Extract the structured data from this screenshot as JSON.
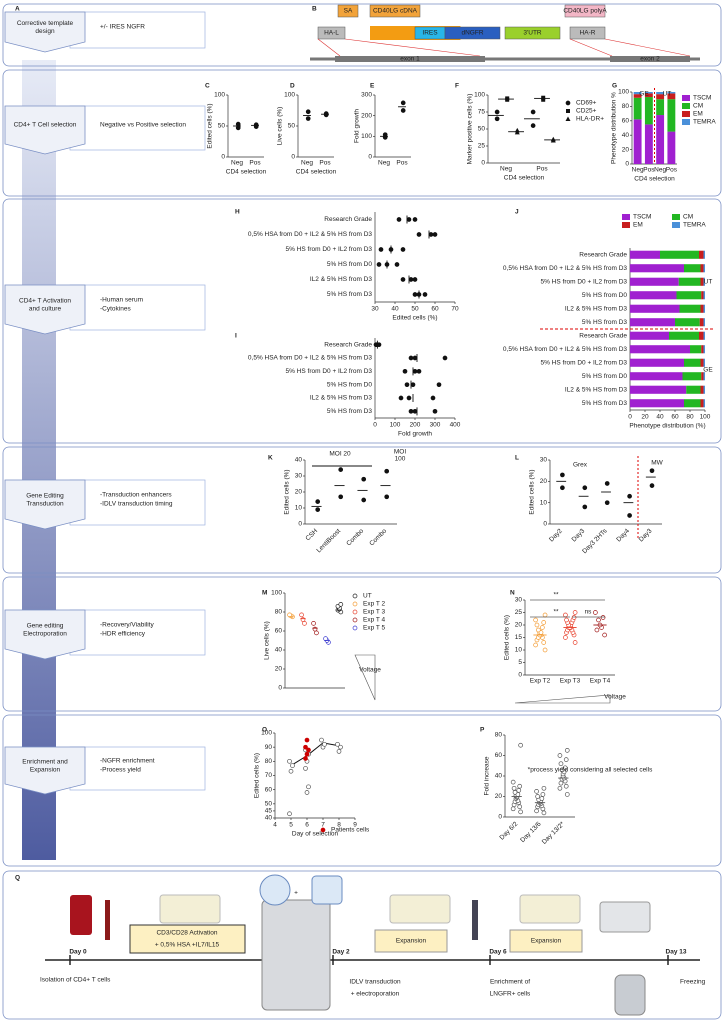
{
  "rows": [
    {
      "letter": "A",
      "title": "Corrective template design",
      "notes": [
        "+/- IRES NGFR"
      ]
    },
    {
      "title": "CD4+ T Cell selection",
      "notes": [
        "Negative vs Positive selection"
      ]
    },
    {
      "title": "CD4+ T Activation and culture",
      "notes": [
        "-Human serum",
        "-Cytokines"
      ]
    },
    {
      "title": "Gene Editing Transduction",
      "notes": [
        "-Transduction enhancers",
        "-IDLV transduction timing"
      ]
    },
    {
      "title": "Gene editing Electroporation",
      "notes": [
        "-Recovery/Viability",
        "-HDR efficiency"
      ]
    },
    {
      "title": "Enrichment and Expansion",
      "notes": [
        "-NGFR enrichment",
        "-Process yield"
      ]
    }
  ],
  "construct": {
    "letter": "B",
    "boxes": [
      "HA-L",
      "SA",
      "CD40LG cDNA",
      "IRES",
      "dNGFR",
      "3'UTR",
      "CD40LG polyA",
      "HA-R"
    ],
    "exons": [
      "exon 1",
      "exon 2"
    ]
  },
  "chart_data": [
    {
      "letter": "C",
      "type": "dot",
      "ylabel": "Edited cells (%)",
      "xlabel": "CD4 selection",
      "categories": [
        "Neg",
        "Pos"
      ],
      "ylim": [
        0,
        100
      ],
      "yticks": [
        0,
        50,
        100
      ],
      "series": [
        {
          "color": "#111",
          "marker": "circle",
          "points": [
            [
              47,
              53
            ],
            [
              49,
              52
            ]
          ],
          "means": [
            50,
            51
          ]
        }
      ]
    },
    {
      "letter": "D",
      "type": "dot",
      "ylabel": "Live cells (%)",
      "xlabel": "CD4 selection",
      "categories": [
        "Neg",
        "Pos"
      ],
      "ylim": [
        0,
        100
      ],
      "yticks": [
        0,
        50,
        100
      ],
      "series": [
        {
          "color": "#111",
          "marker": "circle",
          "points": [
            [
              62,
              73
            ],
            [
              68,
              70
            ]
          ],
          "means": [
            67,
            69
          ]
        }
      ]
    },
    {
      "letter": "E",
      "type": "dot",
      "ylabel": "Fold growth",
      "categories": [
        "Neg",
        "Pos"
      ],
      "ylim": [
        0,
        300
      ],
      "yticks": [
        0,
        100,
        200,
        300
      ],
      "series": [
        {
          "color": "#111",
          "marker": "circle",
          "points": [
            [
              95,
              108
            ],
            [
              225,
              262
            ]
          ],
          "means": [
            100,
            243
          ]
        }
      ]
    },
    {
      "letter": "F",
      "type": "dot",
      "ylabel": "Marker positive cells (%)",
      "xlabel": "CD4 selection",
      "categories": [
        "Neg",
        "Pos"
      ],
      "ylim": [
        0,
        100
      ],
      "yticks": [
        0,
        25,
        50,
        75,
        100
      ],
      "series": [
        {
          "name": "CD69+",
          "color": "#111",
          "marker": "circle",
          "points": [
            [
              65,
              75
            ],
            [
              55,
              75
            ]
          ],
          "means": [
            70,
            65
          ]
        },
        {
          "name": "CD25+",
          "color": "#111",
          "marker": "square",
          "points": [
            [
              93,
              95
            ],
            [
              93,
              96
            ]
          ],
          "means": [
            94,
            95
          ]
        },
        {
          "name": "HLA-DR+",
          "color": "#111",
          "marker": "triangle",
          "points": [
            [
              45,
              48
            ],
            [
              33,
              35
            ]
          ],
          "means": [
            46,
            34
          ]
        }
      ]
    },
    {
      "letter": "G",
      "type": "stacked",
      "ylabel": "Phenotype distribution %",
      "xlabel": "CD4 selection",
      "categories": [
        "Neg",
        "Pos",
        "Neg",
        "Pos"
      ],
      "ylim": [
        0,
        100
      ],
      "yticks": [
        0,
        20,
        40,
        60,
        80,
        100
      ],
      "annotations": [
        "GE",
        "UT"
      ],
      "series": [
        {
          "name": "TSCM",
          "color": "#a020d0",
          "values": [
            62,
            55,
            68,
            45
          ]
        },
        {
          "name": "CM",
          "color": "#22b722",
          "values": [
            30,
            38,
            22,
            45
          ]
        },
        {
          "name": "EM",
          "color": "#c81e1e",
          "values": [
            5,
            5,
            7,
            8
          ]
        },
        {
          "name": "TEMRA",
          "color": "#4a90d9",
          "values": [
            3,
            2,
            3,
            2
          ]
        }
      ]
    },
    {
      "letter": "H",
      "type": "hdot",
      "xlabel": "Edited cells (%)",
      "categories": [
        "Research Grade",
        "0,5% HSA from D0 + IL2 & 5% HS from D3",
        "5% HS from D0 + IL2 from D3",
        "5% HS from D0",
        "IL2 & 5% HS from D3",
        "5% HS from D3"
      ],
      "xlim": [
        30,
        70
      ],
      "xticks": [
        30,
        40,
        50,
        60,
        70
      ],
      "series": [
        {
          "color": "#111",
          "marker": "circle",
          "points": [
            [
              42,
              47,
              50
            ],
            [
              52,
              58,
              60
            ],
            [
              33,
              38,
              44
            ],
            [
              32,
              36,
              41
            ],
            [
              44,
              48,
              50
            ],
            [
              50,
              52,
              55
            ]
          ],
          "means": [
            46,
            57,
            38,
            36,
            47,
            52
          ]
        }
      ]
    },
    {
      "letter": "I",
      "type": "hdot",
      "xlabel": "Fold growth",
      "categories": [
        "Research Grade",
        "0,5% HSA from D0 + IL2 & 5% HS from D3",
        "5% HS from D0 + IL2 from D3",
        "5% HS from D0",
        "IL2 & 5% HS from D3",
        "5% HS from D3"
      ],
      "xlim": [
        0,
        400
      ],
      "xticks": [
        0,
        100,
        200,
        300,
        400
      ],
      "series": [
        {
          "color": "#111",
          "marker": "circle",
          "points": [
            [
              5,
              10,
              20
            ],
            [
              180,
              200,
              350
            ],
            [
              150,
              200,
              220
            ],
            [
              160,
              190,
              320
            ],
            [
              130,
              170,
              290
            ],
            [
              180,
              200,
              300
            ]
          ],
          "means": [
            12,
            210,
            190,
            180,
            190,
            210
          ]
        }
      ]
    },
    {
      "letter": "J",
      "type": "hstacked",
      "xlabel": "Phenotype distribution (%)",
      "categories": [
        "Research Grade",
        "0,5% HSA from D0 + IL2 & 5% HS from D3",
        "5% HS from D0 + IL2 from D3",
        "5% HS from D0",
        "IL2 & 5% HS from D3",
        "5% HS from D3",
        "Research Grade",
        "0,5% HSA from D0 + IL2 & 5% HS from D3",
        "5% HS from D0 + IL2 from D3",
        "5% HS from D0",
        "IL2 & 5% HS from D3",
        "5% HS from D3"
      ],
      "xlim": [
        0,
        100
      ],
      "xticks": [
        0,
        20,
        40,
        60,
        80,
        100
      ],
      "annotations": [
        "UT",
        "GE"
      ],
      "series": [
        {
          "name": "TSCM",
          "color": "#a020d0",
          "values": [
            40,
            72,
            65,
            62,
            66,
            60,
            52,
            80,
            72,
            70,
            75,
            72
          ]
        },
        {
          "name": "CM",
          "color": "#22b722",
          "values": [
            52,
            22,
            29,
            33,
            28,
            33,
            40,
            15,
            22,
            25,
            19,
            22
          ]
        },
        {
          "name": "EM",
          "color": "#c81e1e",
          "values": [
            6,
            4,
            4,
            3,
            4,
            5,
            6,
            3,
            4,
            3,
            4,
            4
          ]
        },
        {
          "name": "TEMRA",
          "color": "#4a90d9",
          "values": [
            2,
            2,
            2,
            2,
            2,
            2,
            2,
            2,
            2,
            2,
            2,
            2
          ]
        }
      ]
    },
    {
      "letter": "K",
      "type": "dot",
      "ylabel": "Edited cells (%)",
      "categories": [
        "CSH",
        "LentiBoost",
        "Combo",
        "Combo"
      ],
      "ylim": [
        0,
        40
      ],
      "yticks": [
        0,
        10,
        20,
        30,
        40
      ],
      "annotations": [
        "MOI 20",
        "MOI",
        "100"
      ],
      "series": [
        {
          "color": "#111",
          "marker": "circle",
          "points": [
            [
              9,
              14
            ],
            [
              17,
              34
            ],
            [
              15,
              28
            ],
            [
              17,
              33
            ]
          ],
          "means": [
            11,
            24,
            21,
            24
          ]
        }
      ]
    },
    {
      "letter": "L",
      "type": "dot",
      "ylabel": "Edited cells (%)",
      "categories": [
        "Day2",
        "Day3",
        "Day3 2HTs",
        "Day4",
        "Day3"
      ],
      "ylim": [
        0,
        30
      ],
      "yticks": [
        0,
        10,
        20,
        30
      ],
      "annotations": [
        "Grex",
        "MW"
      ],
      "series": [
        {
          "color": "#111",
          "marker": "circle",
          "points": [
            [
              17,
              23
            ],
            [
              8,
              17
            ],
            [
              10,
              19
            ],
            [
              4,
              13
            ],
            [
              18,
              25
            ]
          ],
          "means": [
            20,
            13,
            15,
            10,
            22
          ]
        }
      ]
    },
    {
      "letter": "M",
      "type": "dot",
      "ylabel": "Live cells (%)",
      "categories": [
        null,
        null,
        null,
        null,
        null
      ],
      "ylim": [
        0,
        100
      ],
      "yticks": [
        0,
        20,
        40,
        60,
        80,
        100
      ],
      "annotations": [
        "Voltage"
      ],
      "series": [
        {
          "name": "UT",
          "color": "#222",
          "marker": "open",
          "points": [
            null,
            null,
            null,
            null,
            [
              80,
              82,
              83,
              84,
              86,
              88
            ]
          ],
          "means": [
            null,
            null,
            null,
            null,
            82
          ]
        },
        {
          "name": "Exp T 2",
          "color": "#f39c34",
          "marker": "open",
          "points": [
            [
              75,
              76,
              77
            ],
            null,
            null,
            null,
            null
          ],
          "means": [
            75,
            null,
            null,
            null,
            null
          ]
        },
        {
          "name": "Exp T 3",
          "color": "#e8402c",
          "marker": "open",
          "points": [
            null,
            [
              68,
              72,
              77
            ],
            null,
            null,
            null
          ],
          "means": [
            null,
            73,
            null,
            null,
            null
          ]
        },
        {
          "name": "Exp T 4",
          "color": "#a01818",
          "marker": "open",
          "points": [
            null,
            null,
            [
              58,
              62,
              68
            ],
            null,
            null
          ],
          "means": [
            null,
            null,
            63,
            null,
            null
          ]
        },
        {
          "name": "Exp T 5",
          "color": "#3a3ad0",
          "marker": "open",
          "points": [
            null,
            null,
            null,
            [
              48,
              50,
              52
            ],
            null
          ],
          "means": [
            null,
            null,
            null,
            50,
            null
          ]
        }
      ]
    },
    {
      "letter": "N",
      "type": "dot",
      "ylabel": "Edited cells (%)",
      "categories": [
        "Exp T2",
        "Exp T3",
        "Exp T4"
      ],
      "ylim": [
        0,
        30
      ],
      "yticks": [
        0,
        5,
        10,
        15,
        20,
        25,
        30
      ],
      "annotations": [
        "**",
        "**",
        "ns",
        "Voltage"
      ],
      "series": [
        {
          "color": "#f39c34",
          "marker": "open",
          "points": [
            [
              10,
              12,
              13,
              14,
              15,
              15,
              16,
              16,
              17,
              17,
              18,
              19,
              20,
              21,
              22,
              24
            ],
            null,
            null
          ],
          "means": [
            16,
            null,
            null
          ]
        },
        {
          "color": "#e8402c",
          "marker": "open",
          "points": [
            null,
            [
              13,
              15,
              16,
              17,
              17,
              18,
              18,
              19,
              19,
              19,
              20,
              20,
              20,
              21,
              21,
              22,
              22,
              23,
              24,
              25
            ],
            null
          ],
          "means": [
            null,
            19,
            null
          ]
        },
        {
          "color": "#a01818",
          "marker": "open",
          "points": [
            null,
            null,
            [
              16,
              18,
              19,
              20,
              22,
              23,
              25
            ]
          ],
          "means": [
            null,
            null,
            20
          ]
        }
      ]
    },
    {
      "letter": "O",
      "type": "scatter",
      "ylabel": "Edited cells (%)",
      "xlabel": "Day of selection",
      "xlim": [
        4,
        9
      ],
      "xticks": [
        4,
        5,
        6,
        7,
        8,
        9
      ],
      "ylim": [
        40,
        100
      ],
      "yticks": [
        40,
        45,
        50,
        60,
        70,
        80,
        90,
        100
      ],
      "series": [
        {
          "color": "#555",
          "marker": "open",
          "x": [
            5,
            5,
            5,
            5,
            6,
            6,
            6,
            6,
            6,
            6,
            7,
            7,
            7,
            8,
            8,
            8
          ],
          "values": [
            43,
            73,
            77,
            80,
            58,
            62,
            75,
            80,
            85,
            88,
            90,
            92,
            95,
            87,
            90,
            92
          ]
        },
        {
          "name": "Patients cells",
          "color": "#c00",
          "marker": "circle",
          "x": [
            6,
            6,
            6,
            6,
            6
          ],
          "values": [
            82,
            85,
            88,
            90,
            95
          ]
        }
      ],
      "line": {
        "x": [
          5,
          6,
          7,
          8
        ],
        "values": [
          77,
          84,
          93,
          91
        ]
      }
    },
    {
      "letter": "P",
      "type": "dot",
      "ylabel": "Fold increase",
      "categories": [
        "Day 6/2",
        "Day 13/6",
        "Day 13/2*"
      ],
      "ylim": [
        0,
        80
      ],
      "yticks": [
        0,
        20,
        40,
        60,
        80
      ],
      "annotations": [
        "*process yield considering all selected cells"
      ],
      "series": [
        {
          "color": "#555",
          "marker": "open",
          "points": [
            [
              5,
              8,
              10,
              12,
              14,
              15,
              16,
              18,
              19,
              20,
              21,
              22,
              24,
              26,
              28,
              30,
              34,
              70
            ],
            [
              4,
              6,
              8,
              10,
              11,
              12,
              13,
              14,
              15,
              16,
              17,
              18,
              20,
              22,
              25,
              28
            ],
            [
              22,
              28,
              30,
              33,
              35,
              37,
              38,
              40,
              42,
              44,
              46,
              48,
              52,
              56,
              60,
              65
            ]
          ],
          "means": [
            20,
            14,
            38
          ]
        }
      ]
    }
  ],
  "timeline": {
    "letter": "Q",
    "days": [
      "Day 0",
      "Day 2",
      "Day 6",
      "Day 13"
    ],
    "steps": [
      "Isolation of CD4+ T cells",
      "CD3/CD28 Activation",
      "+ 0,5% HSA +IL7/IL15",
      "IDLV transduction",
      "+ electroporation",
      "Expansion",
      "Expansion",
      "Enrichment of",
      "LNGFR+ cells",
      "Freezing",
      "+"
    ]
  }
}
